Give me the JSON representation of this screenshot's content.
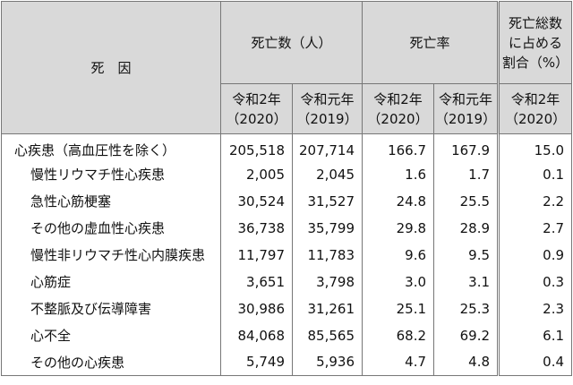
{
  "table": {
    "header": {
      "cause": "死　因",
      "deaths": "死亡数（人）",
      "rate": "死亡率",
      "share": [
        "死亡総数",
        "に占める",
        "割合（%）"
      ],
      "sub": [
        [
          "令和2年",
          "（2020）"
        ],
        [
          "令和元年",
          "（2019）"
        ],
        [
          "令和2年",
          "（2020）"
        ],
        [
          "令和元年",
          "（2019）"
        ],
        [
          "令和2年",
          "（2020）"
        ]
      ]
    },
    "rows": [
      [
        "心疾患（高血圧性を除く）",
        "205,518",
        "207,714",
        "166.7",
        "167.9",
        "15.0"
      ],
      [
        "慢性リウマチ性心疾患",
        "2,005",
        "2,045",
        "1.6",
        "1.7",
        "0.1"
      ],
      [
        "急性心筋梗塞",
        "30,524",
        "31,527",
        "24.8",
        "25.5",
        "2.2"
      ],
      [
        "その他の虚血性心疾患",
        "36,738",
        "35,799",
        "29.8",
        "28.9",
        "2.7"
      ],
      [
        "慢性非リウマチ性心内膜疾患",
        "11,797",
        "11,783",
        "9.6",
        "9.5",
        "0.9"
      ],
      [
        "心筋症",
        "3,651",
        "3,798",
        "3.0",
        "3.1",
        "0.3"
      ],
      [
        "不整脈及び伝導障害",
        "30,986",
        "31,261",
        "25.1",
        "25.3",
        "2.3"
      ],
      [
        "心不全",
        "84,068",
        "85,565",
        "68.2",
        "69.2",
        "6.1"
      ],
      [
        "その他の心疾患",
        "5,749",
        "5,936",
        "4.7",
        "4.8",
        "0.4"
      ]
    ]
  }
}
